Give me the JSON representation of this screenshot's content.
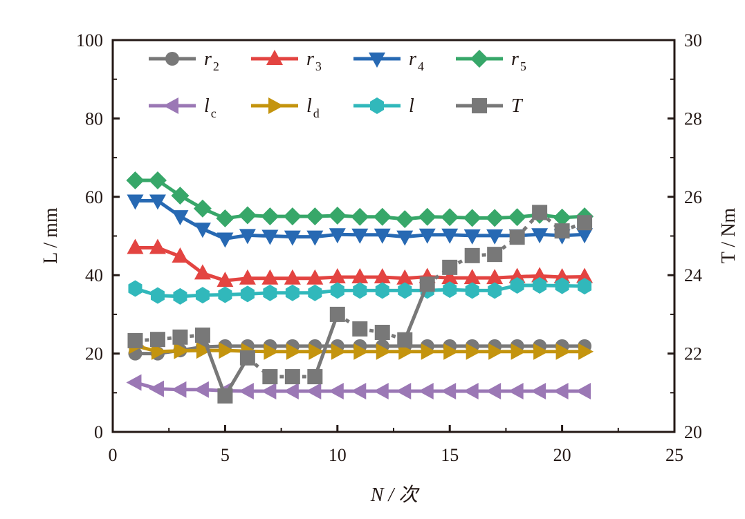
{
  "chart_data": {
    "type": "line",
    "xlabel": "N / 次",
    "ylabel": "L / mm",
    "y2label": "T / Nm",
    "xlim": [
      0,
      25
    ],
    "ylim": [
      0,
      100
    ],
    "y2lim": [
      20,
      30
    ],
    "xticks": [
      "0",
      "5",
      "10",
      "15",
      "20",
      "25"
    ],
    "yticks": [
      "0",
      "20",
      "40",
      "60",
      "80",
      "100"
    ],
    "y2ticks": [
      "20",
      "22",
      "24",
      "26",
      "28",
      "30"
    ],
    "legend_position": "top",
    "x": [
      1,
      2,
      3,
      4,
      5,
      6,
      7,
      8,
      9,
      10,
      11,
      12,
      13,
      14,
      15,
      16,
      17,
      18,
      19,
      20,
      21
    ],
    "series": [
      {
        "name": "r",
        "sub": "2",
        "color": "#787878",
        "marker": "circle",
        "axis": "left",
        "values": [
          20,
          20,
          20.8,
          21.7,
          21.9,
          21.9,
          21.9,
          21.9,
          21.9,
          21.9,
          21.9,
          21.9,
          21.9,
          21.9,
          21.9,
          21.9,
          21.9,
          21.9,
          21.9,
          21.9,
          21.9
        ]
      },
      {
        "name": "r",
        "sub": "3",
        "color": "#e34441",
        "marker": "triangle-up",
        "axis": "left",
        "values": [
          47,
          47,
          44.8,
          40.5,
          38.6,
          39.2,
          39.2,
          39.2,
          39.2,
          39.5,
          39.5,
          39.5,
          39.2,
          39.6,
          39.3,
          39.3,
          39.3,
          39.6,
          39.8,
          39.5,
          39.6
        ]
      },
      {
        "name": "r",
        "sub": "4",
        "color": "#2769b3",
        "marker": "triangle-down",
        "axis": "left",
        "values": [
          59,
          59,
          55,
          51.8,
          49.3,
          50.2,
          50,
          49.8,
          49.8,
          50.4,
          50.3,
          50.3,
          49.8,
          50.3,
          50.3,
          50.1,
          50.1,
          50.1,
          50.4,
          50.1,
          50.4
        ]
      },
      {
        "name": "r",
        "sub": "5",
        "color": "#37a769",
        "marker": "diamond",
        "axis": "left",
        "values": [
          64.2,
          64.2,
          60.3,
          57,
          54.5,
          55.3,
          55,
          55,
          55,
          55.2,
          54.9,
          54.9,
          54.3,
          54.9,
          54.8,
          54.6,
          54.6,
          54.8,
          55.4,
          54.7,
          55
        ]
      },
      {
        "name": "l",
        "sub": "c",
        "color": "#9b78b5",
        "marker": "triangle-left",
        "axis": "left",
        "values": [
          12.6,
          11,
          10.8,
          10.8,
          10.5,
          10.4,
          10.4,
          10.4,
          10.4,
          10.4,
          10.4,
          10.4,
          10.4,
          10.4,
          10.4,
          10.4,
          10.4,
          10.4,
          10.4,
          10.4,
          10.4
        ]
      },
      {
        "name": "l",
        "sub": "d",
        "color": "#c4940e",
        "marker": "triangle-right",
        "axis": "left",
        "values": [
          22,
          20.5,
          20.7,
          20.8,
          20.8,
          20.6,
          20.5,
          20.5,
          20.5,
          20.5,
          20.5,
          20.5,
          20.5,
          20.5,
          20.5,
          20.5,
          20.5,
          20.5,
          20.5,
          20.5,
          20.5
        ]
      },
      {
        "name": "l",
        "sub": "",
        "color": "#31b8bb",
        "marker": "hexagon",
        "axis": "left",
        "values": [
          36.6,
          34.8,
          34.6,
          34.9,
          35,
          35.2,
          35.5,
          35.5,
          35.5,
          36.1,
          36.1,
          36.1,
          36.1,
          36.1,
          36.3,
          36.1,
          36.1,
          37.4,
          37.4,
          37.3,
          37.2
        ]
      },
      {
        "name": "T",
        "sub": "",
        "color": "#787878",
        "marker": "square",
        "axis": "right",
        "values": [
          22.33,
          22.36,
          22.42,
          22.47,
          20.92,
          21.89,
          21.41,
          21.41,
          21.41,
          23.0,
          22.63,
          22.54,
          22.35,
          23.77,
          24.2,
          24.5,
          24.53,
          24.97,
          25.6,
          25.13,
          25.34
        ]
      }
    ]
  }
}
